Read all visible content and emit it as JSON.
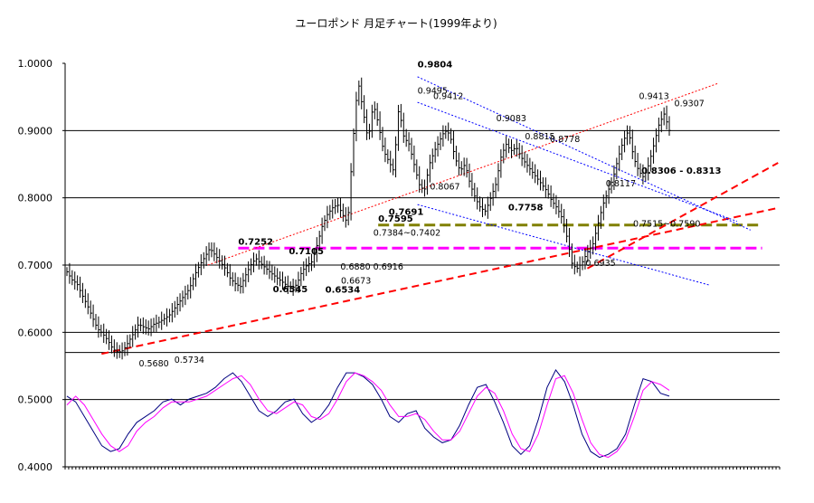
{
  "chart_data": {
    "type": "ohlc-with-oscillator",
    "title": "ユーロポンド 月足チャート(1999年より)",
    "ylim": [
      0.4,
      1.0
    ],
    "y_ticks": [
      "0.4000",
      "0.5000",
      "0.6000",
      "0.7000",
      "0.8000",
      "0.9000",
      "1.0000"
    ],
    "gridlines": [
      0.57,
      0.6,
      0.7,
      0.8,
      0.9
    ],
    "price_anchors": [
      0.69,
      0.678,
      0.672,
      0.655,
      0.64,
      0.622,
      0.605,
      0.598,
      0.588,
      0.575,
      0.57,
      0.573,
      0.585,
      0.598,
      0.612,
      0.608,
      0.605,
      0.612,
      0.615,
      0.62,
      0.625,
      0.635,
      0.645,
      0.655,
      0.665,
      0.685,
      0.7,
      0.712,
      0.725,
      0.715,
      0.705,
      0.695,
      0.68,
      0.672,
      0.668,
      0.685,
      0.7,
      0.71,
      0.702,
      0.695,
      0.688,
      0.682,
      0.676,
      0.67,
      0.665,
      0.671,
      0.69,
      0.7,
      0.705,
      0.73,
      0.758,
      0.775,
      0.785,
      0.79,
      0.775,
      0.762,
      0.88,
      0.975,
      0.93,
      0.885,
      0.94,
      0.91,
      0.87,
      0.855,
      0.84,
      0.935,
      0.89,
      0.88,
      0.85,
      0.82,
      0.81,
      0.85,
      0.87,
      0.885,
      0.9,
      0.895,
      0.86,
      0.84,
      0.85,
      0.82,
      0.8,
      0.785,
      0.78,
      0.8,
      0.82,
      0.86,
      0.88,
      0.87,
      0.875,
      0.86,
      0.85,
      0.84,
      0.83,
      0.82,
      0.81,
      0.795,
      0.785,
      0.77,
      0.74,
      0.7,
      0.695,
      0.705,
      0.72,
      0.73,
      0.76,
      0.79,
      0.81,
      0.83,
      0.86,
      0.885,
      0.9,
      0.86,
      0.84,
      0.83,
      0.85,
      0.88,
      0.91,
      0.925,
      0.9
    ],
    "oscillator": {
      "ylim": [
        0.4,
        0.58
      ],
      "series": [
        {
          "color": "#000080",
          "values": [
            0.515,
            0.505,
            0.48,
            0.455,
            0.43,
            0.42,
            0.425,
            0.45,
            0.47,
            0.48,
            0.49,
            0.505,
            0.51,
            0.5,
            0.51,
            0.515,
            0.52,
            0.53,
            0.545,
            0.555,
            0.54,
            0.515,
            0.49,
            0.48,
            0.49,
            0.505,
            0.51,
            0.485,
            0.47,
            0.48,
            0.5,
            0.53,
            0.555,
            0.555,
            0.548,
            0.535,
            0.51,
            0.48,
            0.47,
            0.485,
            0.49,
            0.46,
            0.445,
            0.435,
            0.44,
            0.465,
            0.5,
            0.53,
            0.535,
            0.505,
            0.47,
            0.43,
            0.415,
            0.43,
            0.475,
            0.53,
            0.56,
            0.54,
            0.5,
            0.45,
            0.42,
            0.41,
            0.415,
            0.425,
            0.45,
            0.5,
            0.545,
            0.54,
            0.52,
            0.515
          ]
        },
        {
          "color": "#ff00ff",
          "values": [
            0.5,
            0.515,
            0.5,
            0.475,
            0.45,
            0.43,
            0.42,
            0.43,
            0.455,
            0.47,
            0.48,
            0.495,
            0.505,
            0.505,
            0.505,
            0.51,
            0.515,
            0.525,
            0.535,
            0.545,
            0.55,
            0.535,
            0.51,
            0.49,
            0.485,
            0.495,
            0.505,
            0.5,
            0.48,
            0.475,
            0.485,
            0.51,
            0.54,
            0.555,
            0.55,
            0.54,
            0.525,
            0.5,
            0.48,
            0.48,
            0.485,
            0.475,
            0.455,
            0.44,
            0.44,
            0.455,
            0.485,
            0.515,
            0.53,
            0.52,
            0.49,
            0.45,
            0.425,
            0.42,
            0.45,
            0.5,
            0.545,
            0.55,
            0.52,
            0.475,
            0.435,
            0.415,
            0.41,
            0.42,
            0.44,
            0.48,
            0.525,
            0.54,
            0.535,
            0.525
          ]
        }
      ]
    },
    "annotations": [
      {
        "text": "0.9804",
        "x": 0.4932,
        "y": 0.9804,
        "bold": true
      },
      {
        "text": "0.9495",
        "x": 0.4932,
        "y": 0.9495,
        "bold": false
      },
      {
        "text": "0.9412",
        "x": 0.5152,
        "y": 0.9412,
        "bold": false
      },
      {
        "text": "0.9083",
        "x": 0.6034,
        "y": 0.9083,
        "bold": false
      },
      {
        "text": "0.8815",
        "x": 0.6435,
        "y": 0.8815,
        "bold": false
      },
      {
        "text": "0.8778",
        "x": 0.6785,
        "y": 0.8778,
        "bold": false
      },
      {
        "text": "0.9413",
        "x": 0.8032,
        "y": 0.9413,
        "bold": false
      },
      {
        "text": "0.9307",
        "x": 0.8526,
        "y": 0.9307,
        "bold": false
      },
      {
        "text": "0.8117",
        "x": 0.7567,
        "y": 0.8117,
        "bold": false
      },
      {
        "text": "0.8306 - 0.8313",
        "x": 0.8065,
        "y": 0.8306,
        "bold": true
      },
      {
        "text": "0.8067",
        "x": 0.5106,
        "y": 0.8067,
        "bold": false
      },
      {
        "text": "0.7758",
        "x": 0.6201,
        "y": 0.7758,
        "bold": true
      },
      {
        "text": "0.7691",
        "x": 0.4528,
        "y": 0.7691,
        "bold": true
      },
      {
        "text": "0.7595",
        "x": 0.4382,
        "y": 0.7595,
        "bold": true
      },
      {
        "text": "0.7515~0.7590",
        "x": 0.7949,
        "y": 0.7515,
        "bold": false
      },
      {
        "text": "0.7384~0.7402",
        "x": 0.4313,
        "y": 0.7384,
        "bold": false
      },
      {
        "text": "0.7252",
        "x": 0.2423,
        "y": 0.7252,
        "bold": true
      },
      {
        "text": "0.7105",
        "x": 0.3131,
        "y": 0.7105,
        "bold": true
      },
      {
        "text": "0.6880 0.6916",
        "x": 0.3853,
        "y": 0.688,
        "bold": false
      },
      {
        "text": "0.6673",
        "x": 0.3861,
        "y": 0.6673,
        "bold": false
      },
      {
        "text": "0.6545",
        "x": 0.2907,
        "y": 0.6545,
        "bold": true
      },
      {
        "text": "0.6534",
        "x": 0.3641,
        "y": 0.6534,
        "bold": true
      },
      {
        "text": "0.6935",
        "x": 0.7284,
        "y": 0.6935,
        "bold": false
      },
      {
        "text": "0.5680",
        "x": 0.1031,
        "y": 0.568,
        "bold": false
      },
      {
        "text": "0.5734",
        "x": 0.1528,
        "y": 0.5734,
        "bold": false
      }
    ],
    "trend_lines": [
      {
        "from": [
          0.051,
          0.568
        ],
        "to": [
          0.9978,
          0.785
        ],
        "color": "#ff0000",
        "style": "dashed-thick"
      },
      {
        "from": [
          0.7309,
          0.695
        ],
        "to": [
          0.9978,
          0.852
        ],
        "color": "#ff0000",
        "style": "dashed-thick"
      },
      {
        "from": [
          0.1996,
          0.7
        ],
        "to": [
          0.9133,
          0.97
        ],
        "color": "#ff0000",
        "style": "dotted"
      },
      {
        "from": [
          0.4932,
          0.98
        ],
        "to": [
          0.9593,
          0.752
        ],
        "color": "#0000ff",
        "style": "dotted"
      },
      {
        "from": [
          0.4932,
          0.942
        ],
        "to": [
          0.9403,
          0.765
        ],
        "color": "#0000ff",
        "style": "dotted"
      },
      {
        "from": [
          0.4932,
          0.79
        ],
        "to": [
          0.9024,
          0.67
        ],
        "color": "#0000ff",
        "style": "dotted"
      }
    ],
    "horizontal_levels": [
      {
        "value": 0.7595,
        "x_from": 0.4382,
        "x_to": 0.9755,
        "color": "#808000"
      },
      {
        "value": 0.7252,
        "x_from": 0.2423,
        "x_to": 0.9755,
        "color": "#ff00ff"
      }
    ]
  }
}
